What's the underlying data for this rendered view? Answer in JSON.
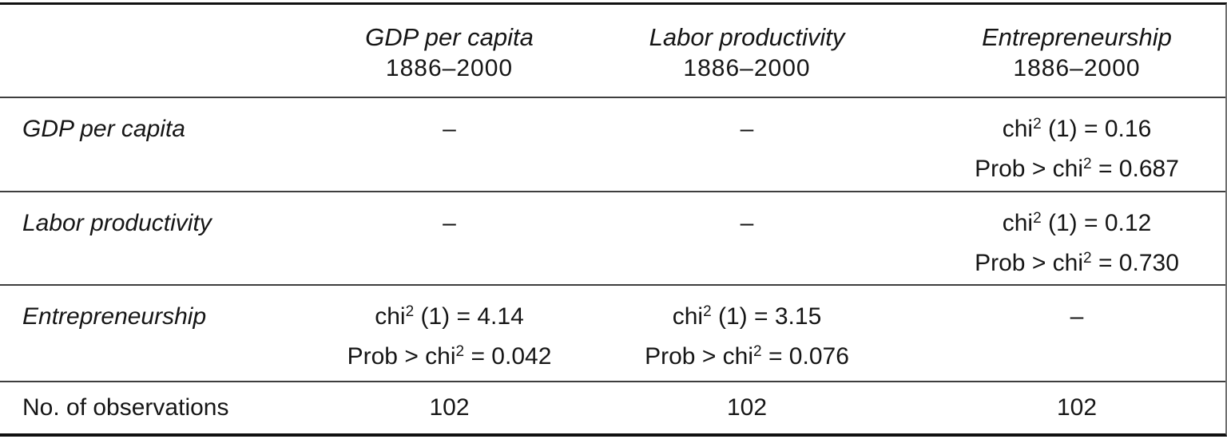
{
  "colors": {
    "background": "#ffffff",
    "text": "#161616",
    "rule_heavy": "#101010",
    "rule_light": "#3e3e3e",
    "right_edge_rule": "#707070"
  },
  "header": {
    "col1": "",
    "col2": {
      "title": "GDP per capita",
      "period": "1886–2000"
    },
    "col3": {
      "title": "Labor productivity",
      "period": "1886–2000"
    },
    "col4": {
      "title": "Entrepreneurship",
      "period": "1886–2000"
    }
  },
  "rows": {
    "gdp": {
      "label": "GDP per capita",
      "col2": {
        "dash": "–"
      },
      "col3": {
        "dash": "–"
      },
      "col4": {
        "chi_base": "chi",
        "chi_sup": "2",
        "chi_rest": " (1) = 0.16",
        "prob_base": "Prob > chi",
        "prob_sup": "2",
        "prob_rest": " = 0.687"
      }
    },
    "labor": {
      "label": "Labor productivity",
      "col2": {
        "dash": "–"
      },
      "col3": {
        "dash": "–"
      },
      "col4": {
        "chi_base": "chi",
        "chi_sup": "2",
        "chi_rest": " (1) = 0.12",
        "prob_base": "Prob > chi",
        "prob_sup": "2",
        "prob_rest": " = 0.730"
      }
    },
    "entrepreneurship": {
      "label": "Entrepreneurship",
      "col2": {
        "chi_base": "chi",
        "chi_sup": "2",
        "chi_rest": " (1) = 4.14",
        "prob_base": "Prob > chi",
        "prob_sup": "2",
        "prob_rest": " = 0.042"
      },
      "col3": {
        "chi_base": "chi",
        "chi_sup": "2",
        "chi_rest": " (1) = 3.15",
        "prob_base": "Prob > chi",
        "prob_sup": "2",
        "prob_rest": " = 0.076"
      },
      "col4": {
        "dash": "–"
      }
    },
    "observations": {
      "label": "No. of observations",
      "col2": "102",
      "col3": "102",
      "col4": "102"
    }
  }
}
